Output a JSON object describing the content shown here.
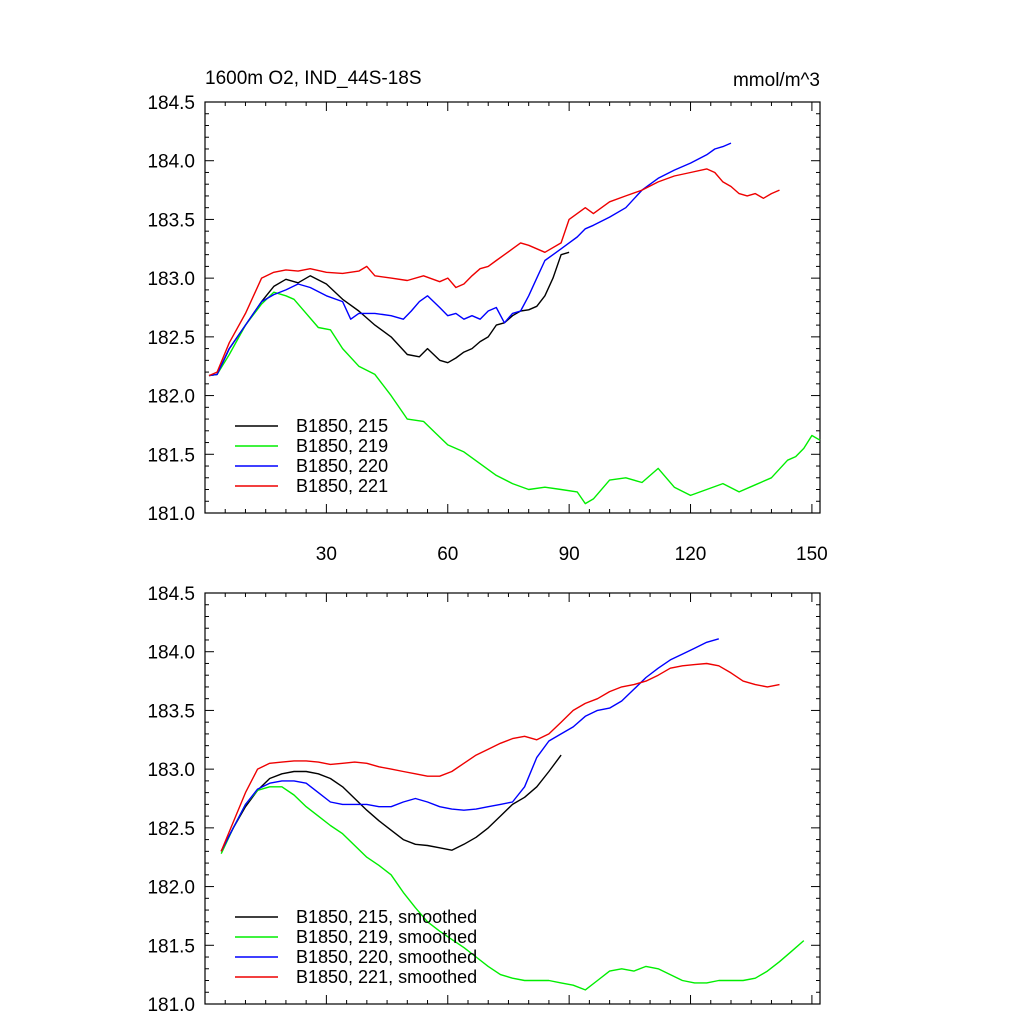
{
  "chart_data": [
    {
      "type": "line",
      "title": "1600m O2, IND_44S-18S",
      "units_label": "mmol/m^3",
      "xlim": [
        0,
        152
      ],
      "ylim": [
        181.0,
        184.5
      ],
      "xticks": [
        30,
        60,
        90,
        120,
        150
      ],
      "yticks": [
        181.0,
        181.5,
        182.0,
        182.5,
        183.0,
        183.5,
        184.0,
        184.5
      ],
      "legend_position": "bottom-left",
      "grid": false,
      "series": [
        {
          "name": "B1850, 215",
          "color": "#000000",
          "x": [
            1,
            3,
            6,
            10,
            14,
            17,
            20,
            23,
            26,
            30,
            34,
            38,
            42,
            46,
            50,
            53,
            55,
            58,
            60,
            62,
            64,
            66,
            68,
            70,
            72,
            74,
            76,
            78,
            80,
            82,
            84,
            86,
            88,
            90
          ],
          "y": [
            182.17,
            182.18,
            182.4,
            182.6,
            182.8,
            182.93,
            182.99,
            182.96,
            183.02,
            182.95,
            182.82,
            182.72,
            182.6,
            182.5,
            182.35,
            182.33,
            182.4,
            182.3,
            182.28,
            182.32,
            182.37,
            182.4,
            182.46,
            182.5,
            182.6,
            182.62,
            182.68,
            182.72,
            182.73,
            182.76,
            182.85,
            183.0,
            183.2,
            183.22
          ]
        },
        {
          "name": "B1850, 219",
          "color": "#00ee00",
          "x": [
            1,
            3,
            6,
            10,
            14,
            17,
            20,
            22,
            25,
            28,
            31,
            34,
            38,
            42,
            46,
            50,
            54,
            57,
            60,
            64,
            68,
            72,
            76,
            80,
            84,
            88,
            92,
            94,
            96,
            100,
            104,
            108,
            112,
            116,
            120,
            124,
            128,
            132,
            136,
            140,
            144,
            146,
            148,
            150,
            152
          ],
          "y": [
            182.17,
            182.18,
            182.35,
            182.6,
            182.78,
            182.88,
            182.85,
            182.82,
            182.7,
            182.58,
            182.56,
            182.4,
            182.25,
            182.18,
            182.0,
            181.8,
            181.78,
            181.68,
            181.58,
            181.52,
            181.42,
            181.32,
            181.25,
            181.2,
            181.22,
            181.2,
            181.18,
            181.08,
            181.12,
            181.28,
            181.3,
            181.26,
            181.38,
            181.22,
            181.15,
            181.2,
            181.25,
            181.18,
            181.24,
            181.3,
            181.45,
            181.48,
            181.55,
            181.66,
            181.62
          ]
        },
        {
          "name": "B1850, 220",
          "color": "#0000ff",
          "x": [
            1,
            3,
            6,
            10,
            14,
            17,
            20,
            23,
            26,
            30,
            34,
            36,
            38,
            42,
            46,
            49,
            51,
            53,
            55,
            58,
            60,
            62,
            64,
            66,
            68,
            70,
            72,
            74,
            76,
            78,
            80,
            82,
            84,
            86,
            88,
            90,
            92,
            94,
            96,
            100,
            104,
            108,
            112,
            116,
            120,
            124,
            126,
            128,
            130
          ],
          "y": [
            182.17,
            182.18,
            182.4,
            182.6,
            182.8,
            182.86,
            182.9,
            182.95,
            182.92,
            182.85,
            182.8,
            182.65,
            182.7,
            182.7,
            182.68,
            182.65,
            182.72,
            182.8,
            182.85,
            182.75,
            182.68,
            182.7,
            182.65,
            182.68,
            182.65,
            182.72,
            182.75,
            182.62,
            182.7,
            182.72,
            182.85,
            183.0,
            183.15,
            183.2,
            183.25,
            183.3,
            183.35,
            183.42,
            183.45,
            183.52,
            183.6,
            183.75,
            183.85,
            183.92,
            183.98,
            184.05,
            184.1,
            184.12,
            184.15
          ]
        },
        {
          "name": "B1850, 221",
          "color": "#ee0000",
          "x": [
            1,
            3,
            6,
            10,
            14,
            17,
            20,
            23,
            26,
            30,
            34,
            38,
            40,
            42,
            46,
            50,
            54,
            58,
            60,
            62,
            64,
            66,
            68,
            70,
            72,
            74,
            76,
            78,
            80,
            84,
            88,
            90,
            92,
            94,
            96,
            100,
            104,
            108,
            112,
            116,
            120,
            124,
            126,
            128,
            130,
            132,
            134,
            136,
            138,
            140,
            142
          ],
          "y": [
            182.17,
            182.2,
            182.45,
            182.7,
            183.0,
            183.05,
            183.07,
            183.06,
            183.08,
            183.05,
            183.04,
            183.06,
            183.1,
            183.02,
            183.0,
            182.98,
            183.02,
            182.97,
            183.0,
            182.92,
            182.95,
            183.02,
            183.08,
            183.1,
            183.15,
            183.2,
            183.25,
            183.3,
            183.28,
            183.22,
            183.3,
            183.5,
            183.55,
            183.6,
            183.55,
            183.65,
            183.7,
            183.75,
            183.82,
            183.87,
            183.9,
            183.93,
            183.9,
            183.82,
            183.78,
            183.72,
            183.7,
            183.72,
            183.68,
            183.72,
            183.75
          ]
        }
      ]
    },
    {
      "type": "line",
      "xlim": [
        0,
        152
      ],
      "ylim": [
        181.0,
        184.5
      ],
      "yticks": [
        181.0,
        181.5,
        182.0,
        182.5,
        183.0,
        183.5,
        184.0,
        184.5
      ],
      "legend_position": "bottom-left",
      "grid": false,
      "series": [
        {
          "name": "B1850, 215, smoothed",
          "color": "#000000",
          "x": [
            4,
            7,
            10,
            13,
            16,
            19,
            22,
            25,
            28,
            31,
            34,
            37,
            40,
            43,
            46,
            49,
            52,
            55,
            58,
            61,
            64,
            67,
            70,
            73,
            76,
            79,
            82,
            85,
            88
          ],
          "y": [
            182.3,
            182.5,
            182.68,
            182.82,
            182.92,
            182.96,
            182.98,
            182.98,
            182.96,
            182.92,
            182.85,
            182.75,
            182.65,
            182.56,
            182.48,
            182.4,
            182.36,
            182.35,
            182.33,
            182.31,
            182.36,
            182.42,
            182.5,
            182.6,
            182.7,
            182.76,
            182.85,
            182.98,
            183.12
          ]
        },
        {
          "name": "B1850, 219, smoothed",
          "color": "#00ee00",
          "x": [
            4,
            7,
            10,
            13,
            16,
            19,
            22,
            25,
            28,
            31,
            34,
            37,
            40,
            43,
            46,
            49,
            52,
            55,
            58,
            61,
            64,
            67,
            70,
            73,
            76,
            79,
            82,
            85,
            88,
            91,
            94,
            97,
            100,
            103,
            106,
            109,
            112,
            115,
            118,
            121,
            124,
            127,
            130,
            133,
            136,
            139,
            142,
            145,
            148
          ],
          "y": [
            182.28,
            182.5,
            182.7,
            182.82,
            182.85,
            182.85,
            182.78,
            182.68,
            182.6,
            182.52,
            182.45,
            182.35,
            182.25,
            182.18,
            182.1,
            181.95,
            181.82,
            181.7,
            181.62,
            181.55,
            181.48,
            181.4,
            181.32,
            181.25,
            181.22,
            181.2,
            181.2,
            181.2,
            181.18,
            181.16,
            181.12,
            181.2,
            181.28,
            181.3,
            181.28,
            181.32,
            181.3,
            181.25,
            181.2,
            181.18,
            181.18,
            181.2,
            181.2,
            181.2,
            181.22,
            181.28,
            181.36,
            181.45,
            181.54
          ]
        },
        {
          "name": "B1850, 220, smoothed",
          "color": "#0000ff",
          "x": [
            4,
            7,
            10,
            13,
            16,
            19,
            22,
            25,
            28,
            31,
            34,
            37,
            40,
            43,
            46,
            49,
            52,
            55,
            58,
            61,
            64,
            67,
            70,
            73,
            76,
            79,
            82,
            85,
            88,
            91,
            94,
            97,
            100,
            103,
            106,
            109,
            112,
            115,
            118,
            121,
            124,
            127
          ],
          "y": [
            182.3,
            182.5,
            182.7,
            182.83,
            182.88,
            182.9,
            182.9,
            182.88,
            182.8,
            182.72,
            182.7,
            182.7,
            182.7,
            182.68,
            182.68,
            182.72,
            182.75,
            182.72,
            182.68,
            182.66,
            182.65,
            182.66,
            182.68,
            182.7,
            182.72,
            182.85,
            183.1,
            183.24,
            183.3,
            183.36,
            183.45,
            183.5,
            183.52,
            183.58,
            183.68,
            183.78,
            183.86,
            183.93,
            183.98,
            184.03,
            184.08,
            184.11
          ]
        },
        {
          "name": "B1850, 221, smoothed",
          "color": "#ee0000",
          "x": [
            4,
            7,
            10,
            13,
            16,
            19,
            22,
            25,
            28,
            31,
            34,
            37,
            40,
            43,
            46,
            49,
            52,
            55,
            58,
            61,
            64,
            67,
            70,
            73,
            76,
            79,
            82,
            85,
            88,
            91,
            94,
            97,
            100,
            103,
            106,
            109,
            112,
            115,
            118,
            121,
            124,
            127,
            130,
            133,
            136,
            139,
            142
          ],
          "y": [
            182.3,
            182.55,
            182.8,
            183.0,
            183.05,
            183.06,
            183.07,
            183.07,
            183.06,
            183.04,
            183.05,
            183.06,
            183.05,
            183.02,
            183.0,
            182.98,
            182.96,
            182.94,
            182.94,
            182.98,
            183.05,
            183.12,
            183.17,
            183.22,
            183.26,
            183.28,
            183.25,
            183.3,
            183.4,
            183.5,
            183.56,
            183.6,
            183.66,
            183.7,
            183.72,
            183.75,
            183.8,
            183.86,
            183.88,
            183.89,
            183.9,
            183.88,
            183.82,
            183.75,
            183.72,
            183.7,
            183.72
          ]
        }
      ]
    }
  ]
}
